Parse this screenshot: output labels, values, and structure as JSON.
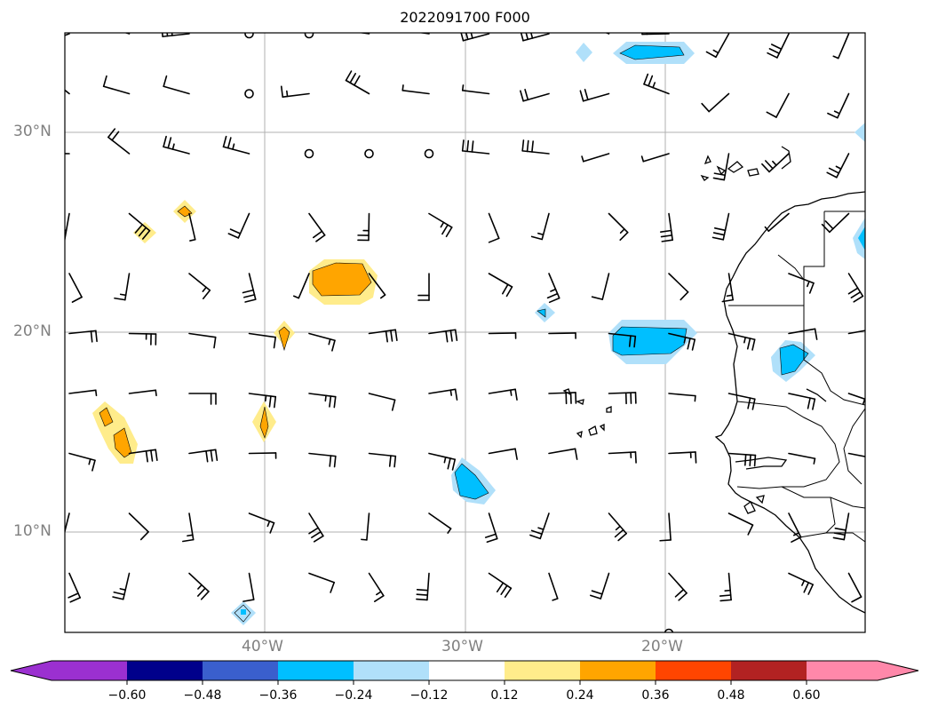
{
  "title": "2022091700 F000",
  "latitude_labels": [
    "30°N",
    "20°N",
    "10°N"
  ],
  "longitude_labels": [
    "40°W",
    "30°W",
    "20°W"
  ],
  "colorbar": {
    "ticks": [
      "−0.60",
      "−0.48",
      "−0.36",
      "−0.24",
      "−0.12",
      "0.12",
      "0.24",
      "0.36",
      "0.48",
      "0.60"
    ],
    "colors": [
      "#9b30d0",
      "#00008b",
      "#3a5fcd",
      "#00bfff",
      "#b0e0fa",
      "#ffffff",
      "#ffec8b",
      "#ffa500",
      "#ff4500",
      "#b22222",
      "#ff88aa"
    ]
  },
  "field_colors": {
    "light_blue": "#b0e0fa",
    "blue": "#00bfff",
    "light_yellow": "#ffec8b",
    "orange": "#ffa500"
  }
}
